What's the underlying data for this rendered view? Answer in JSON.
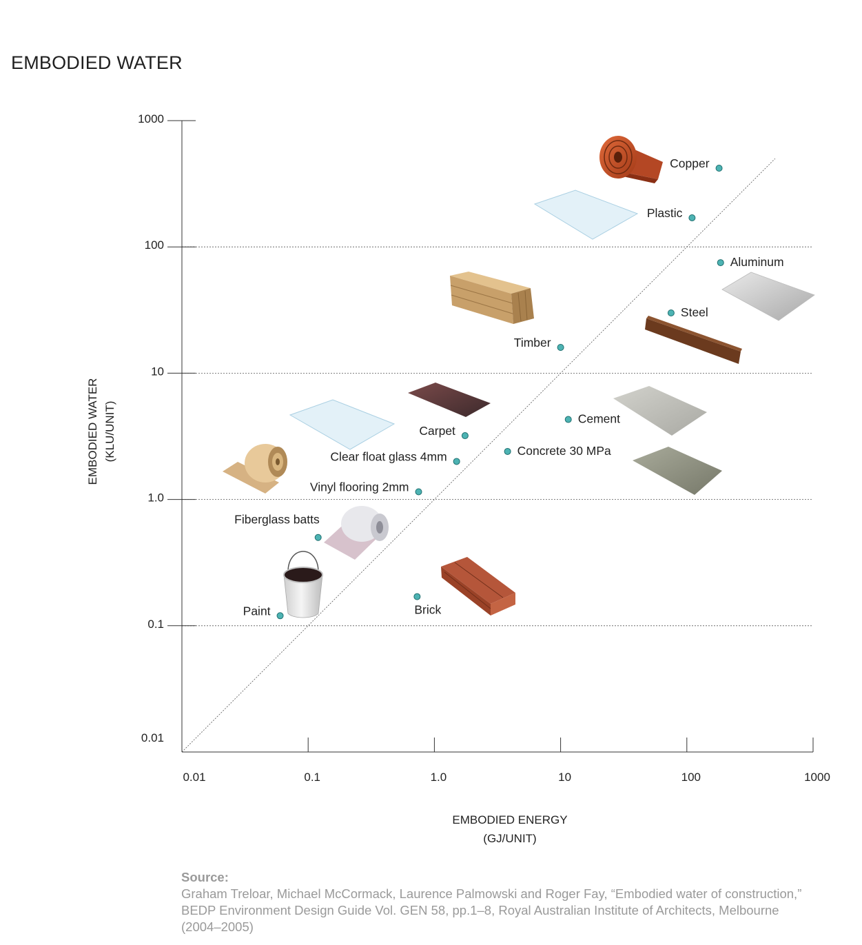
{
  "title": "EMBODIED WATER",
  "chart_data": {
    "type": "scatter",
    "scale": "log",
    "xlabel": [
      "EMBODIED ENERGY",
      "(GJ/UNIT)"
    ],
    "ylabel": [
      "EMBODIED WATER",
      "(KLU/UNIT)"
    ],
    "xlim": [
      0.01,
      1000
    ],
    "ylim": [
      0.01,
      1000
    ],
    "x_ticks": [
      "0.01",
      "0.1",
      "1.0",
      "10",
      "100",
      "1000"
    ],
    "y_ticks": [
      "0.01",
      "0.1",
      "1.0",
      "10",
      "100",
      "1000"
    ],
    "gridlines_y": [
      0.1,
      1,
      10,
      100
    ],
    "diagonal_reference": true,
    "point_color": "#4db3b3",
    "points": [
      {
        "label": "Copper",
        "x": 180,
        "y": 420
      },
      {
        "label": "Plastic",
        "x": 110,
        "y": 170
      },
      {
        "label": "Aluminum",
        "x": 185,
        "y": 75
      },
      {
        "label": "Steel",
        "x": 75,
        "y": 30
      },
      {
        "label": "Timber",
        "x": 10,
        "y": 16
      },
      {
        "label": "Cement",
        "x": 11.5,
        "y": 4.3
      },
      {
        "label": "Carpet",
        "x": 1.75,
        "y": 3.2
      },
      {
        "label": "Concrete 30 MPa",
        "x": 3.8,
        "y": 2.4
      },
      {
        "label": "Clear float glass 4mm",
        "x": 1.5,
        "y": 2.0
      },
      {
        "label": "Vinyl flooring 2mm",
        "x": 0.75,
        "y": 1.15
      },
      {
        "label": "Fiberglass batts",
        "x": 0.12,
        "y": 0.5
      },
      {
        "label": "Brick",
        "x": 0.73,
        "y": 0.17
      },
      {
        "label": "Paint",
        "x": 0.06,
        "y": 0.12
      }
    ]
  },
  "source": {
    "heading": "Source:",
    "text": "Graham Treloar, Michael McCormack, Laurence Palmowski and Roger Fay, “Embodied water of construction,” BEDP Environment Design Guide Vol. GEN 58, pp.1–8, Royal Australian Institute of Architects, Melbourne (2004–2005)"
  }
}
